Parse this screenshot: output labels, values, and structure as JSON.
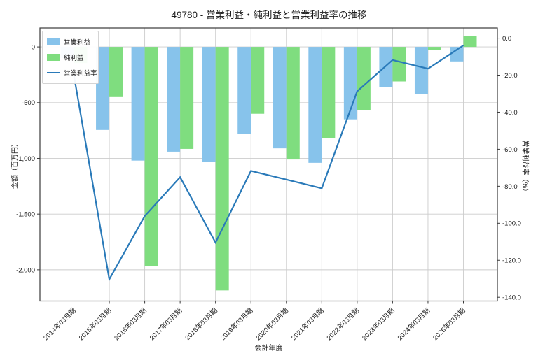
{
  "title": "49780 - 営業利益・純利益と営業利益率の推移",
  "chart_data": {
    "type": "bar+line",
    "title": "49780 - 営業利益・純利益と営業利益率の推移",
    "x_axis": {
      "label": "会計年度",
      "categories": [
        "2014年03月期",
        "2015年03月期",
        "2016年03月期",
        "2017年03月期",
        "2018年03月期",
        "2019年03月期",
        "2020年03月期",
        "2021年03月期",
        "2022年03月期",
        "2023年03月期",
        "2024年03月期",
        "2025年03月期"
      ]
    },
    "y_axis_left": {
      "label": "金額（百万円）",
      "tick_labels": [
        "0",
        "-500",
        "-1,000",
        "-1,500",
        "-2,000"
      ],
      "tick_values": [
        0,
        -500,
        -1000,
        -1500,
        -2000
      ],
      "lim": [
        -2280,
        170
      ]
    },
    "y_axis_right": {
      "label": "営業利益率（%）",
      "tick_labels": [
        "0.0",
        "-20.0",
        "-40.0",
        "-60.0",
        "-80.0",
        "-100.0",
        "-120.0",
        "-140.0"
      ],
      "tick_values": [
        0,
        -20,
        -40,
        -60,
        -80,
        -100,
        -120,
        -140
      ],
      "lim": [
        -142,
        5.5
      ]
    },
    "series": [
      {
        "name": "営業利益",
        "type": "bar",
        "axis": "left",
        "color": "#87c3eb",
        "values": [
          -100,
          -745,
          -1020,
          -940,
          -1030,
          -780,
          -910,
          -1040,
          -650,
          -360,
          -420,
          -130
        ]
      },
      {
        "name": "純利益",
        "type": "bar",
        "axis": "left",
        "color": "#7fdd7f",
        "values": [
          -145,
          -450,
          -1965,
          -915,
          -2185,
          -600,
          -1010,
          -820,
          -570,
          -310,
          -30,
          100
        ]
      },
      {
        "name": "営業利益率",
        "type": "line",
        "axis": "right",
        "color": "#2a7ab9",
        "values": [
          -20.0,
          -130.3,
          -96.1,
          -75.1,
          -110.4,
          -71.7,
          -76.4,
          -81.1,
          -28.7,
          -11.8,
          -16.5,
          -3.9
        ]
      }
    ],
    "grid": true,
    "legend_position": "upper left"
  },
  "colors": {
    "operating_profit_bar": "#87c3eb",
    "net_profit_bar": "#7fdd7f",
    "margin_line": "#2a7ab9",
    "grid": "#cccccc",
    "spine": "#3a3a3a",
    "text": "#1a1a1a",
    "background": "#ffffff"
  }
}
